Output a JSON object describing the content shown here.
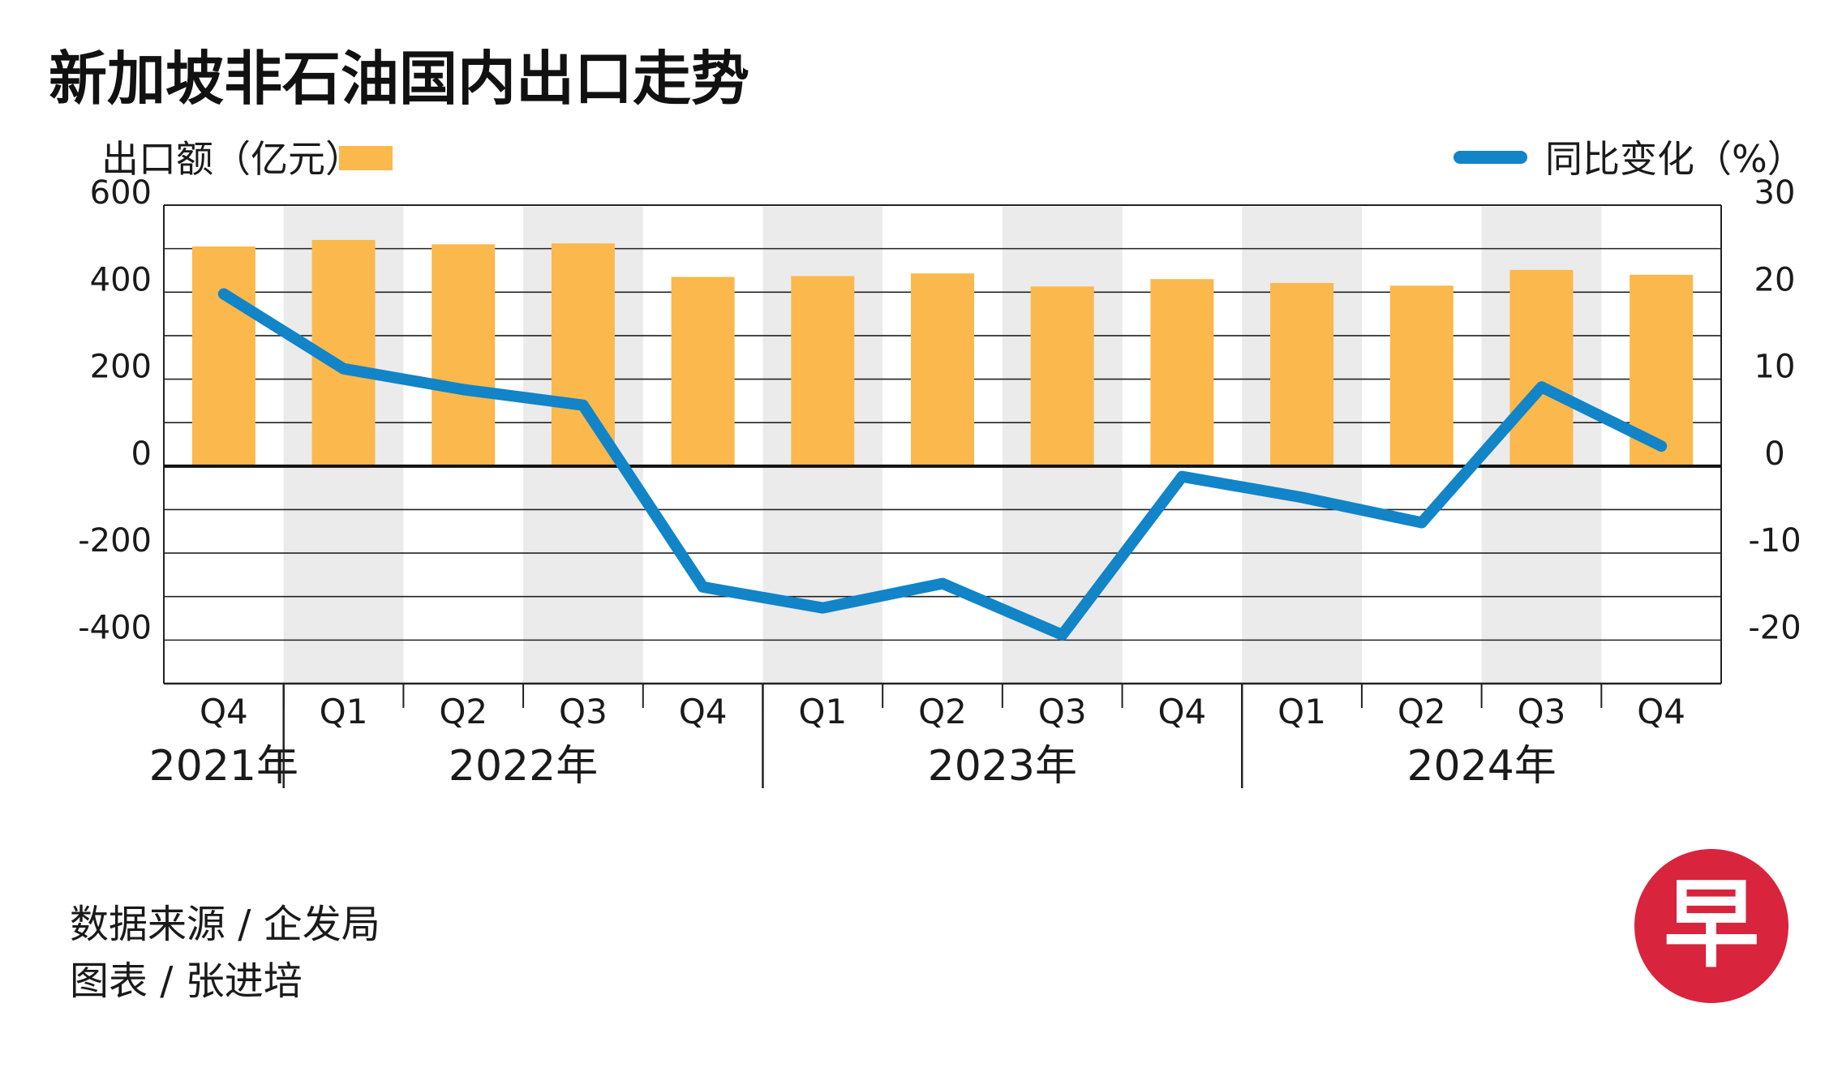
{
  "title": "新加坡非石油国内出口走势",
  "left_axis_label": "出口额（亿元）",
  "right_axis_label": "同比变化（%）",
  "source": "数据来源 / 企发局",
  "credit": "图表 / 张进培",
  "logo_text": "早",
  "colors": {
    "bar": "#fbb84c",
    "line": "#1284c8",
    "band": "#ebebeb",
    "logo": "#d9243d"
  },
  "chart_data": {
    "type": "bar",
    "categories": [
      "Q4",
      "Q1",
      "Q2",
      "Q3",
      "Q4",
      "Q1",
      "Q2",
      "Q3",
      "Q4",
      "Q1",
      "Q2",
      "Q3",
      "Q4"
    ],
    "years": [
      {
        "label": "2021年",
        "start": 0,
        "end": 0
      },
      {
        "label": "2022年",
        "start": 1,
        "end": 4
      },
      {
        "label": "2023年",
        "start": 5,
        "end": 8
      },
      {
        "label": "2024年",
        "start": 9,
        "end": 12
      }
    ],
    "series": [
      {
        "type": "bar",
        "axis": "left",
        "values": [
          505,
          520,
          510,
          512,
          435,
          437,
          443,
          413,
          430,
          421,
          415,
          451,
          440
        ]
      },
      {
        "type": "line",
        "axis": "right",
        "values": [
          19.8,
          11.2,
          8.8,
          7.0,
          -13.9,
          -16.3,
          -13.5,
          -19.4,
          -1.2,
          -3.6,
          -6.5,
          9.1,
          2.3
        ]
      }
    ],
    "y_left": {
      "min": -500,
      "max": 600,
      "ticks": [
        600,
        400,
        200,
        0,
        -200,
        -400
      ]
    },
    "y_right": {
      "min": -25,
      "max": 30,
      "ticks": [
        30,
        20,
        10,
        0,
        -10,
        -20
      ]
    },
    "grid": true,
    "alternating_bands": true
  }
}
